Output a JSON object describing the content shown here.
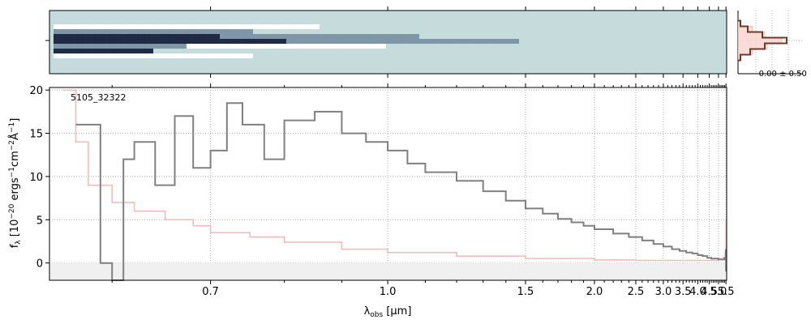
{
  "chart_data": [
    {
      "type": "heatmap",
      "panel": "2d-spectrum",
      "description_none": "",
      "xlabel": "",
      "ylabel": "",
      "colormap": [
        "#1f2a44",
        "#7f95a8",
        "#c6dcdc",
        "#ffffff"
      ],
      "background": "#c6dcdc"
    },
    {
      "type": "line",
      "panel": "spatial-profile",
      "annotation": "-0.00 ± 0.50",
      "series": [
        {
          "color": "#6b3a2c",
          "values": [
            -3,
            -2,
            -1,
            0,
            1,
            2,
            3
          ],
          "profile": [
            0.05,
            0.2,
            0.5,
            1.0,
            0.55,
            0.25,
            0.05
          ]
        },
        {
          "color": "#f4b3a6",
          "values": [
            -3,
            -2,
            -1,
            0,
            1,
            2,
            3
          ],
          "profile": [
            0.05,
            0.3,
            0.55,
            0.9,
            0.6,
            0.3,
            0.05
          ]
        }
      ]
    },
    {
      "type": "line",
      "panel": "1d-spectrum",
      "title": "",
      "annotation": "5105_32322",
      "xlabel": "λobs [μm]",
      "xlabel_main": "λ",
      "xlabel_sub": "obs",
      "xlabel_unit": " [μm]",
      "ylabel": "fλ [10−20 ergs−1cm−2Å−1]",
      "ylabel_parts": {
        "f": "f",
        "lam": "λ",
        "pre": " [10",
        "e1": "−20",
        "mid1": " ergs",
        "e2": "−1",
        "mid2": "cm",
        "e3": "−2",
        "mid3": "Å",
        "e4": "−1",
        "post": "]"
      },
      "xscale": "reciprocal",
      "xlim": [
        0.55,
        5.55
      ],
      "ylim": [
        -2,
        20.3
      ],
      "xticks": [
        0.7,
        1.0,
        1.5,
        2.0,
        2.5,
        3.0,
        3.5,
        4.0,
        4.5,
        5.0,
        5.5
      ],
      "xtick_labels": [
        "0.7",
        "1.0",
        "1.5",
        "2.0",
        "2.5",
        "3.0",
        "3.5",
        "4.0",
        "4.5",
        "5.0",
        "5.5"
      ],
      "yticks": [
        0,
        5,
        10,
        15,
        20
      ],
      "ytick_labels": [
        "0",
        "5",
        "10",
        "15",
        "20"
      ],
      "grid": true,
      "series": [
        {
          "name": "",
          "color": "#808080",
          "x": [
            0.57,
            0.59,
            0.6,
            0.61,
            0.62,
            0.64,
            0.66,
            0.68,
            0.7,
            0.72,
            0.74,
            0.77,
            0.8,
            0.85,
            0.9,
            0.95,
            1.0,
            1.05,
            1.1,
            1.2,
            1.3,
            1.4,
            1.5,
            1.6,
            1.7,
            1.8,
            1.9,
            2.0,
            2.2,
            2.4,
            2.6,
            2.8,
            3.0,
            3.2,
            3.4,
            3.6,
            3.8,
            4.0,
            4.2,
            4.4,
            4.6,
            4.8,
            5.0,
            5.2,
            5.4,
            5.48,
            5.5
          ],
          "y": [
            16,
            0,
            -2,
            12,
            14,
            9,
            17,
            11,
            13,
            18.5,
            16,
            12,
            16.5,
            17.5,
            15,
            14,
            13,
            11.5,
            10.5,
            9.5,
            8.3,
            7.2,
            6.3,
            5.7,
            5.1,
            4.7,
            4.3,
            3.9,
            3.4,
            3.0,
            2.6,
            2.2,
            1.9,
            1.6,
            1.4,
            1.2,
            1.1,
            0.9,
            0.8,
            0.6,
            0.5,
            0.5,
            0.4,
            0.4,
            0.6,
            1.5,
            -1
          ]
        },
        {
          "name": "",
          "color": "#f4b8b8",
          "x": [
            0.56,
            0.57,
            0.58,
            0.6,
            0.62,
            0.65,
            0.68,
            0.7,
            0.75,
            0.8,
            0.9,
            1.0,
            1.2,
            1.5,
            2.0,
            2.5,
            3.0,
            3.5,
            4.0,
            4.5,
            5.0,
            5.3,
            5.45,
            5.5
          ],
          "y": [
            20,
            14,
            9,
            7,
            6,
            5,
            4.3,
            3.5,
            3.0,
            2.4,
            1.6,
            1.2,
            0.8,
            0.5,
            0.35,
            0.3,
            0.3,
            0.3,
            0.3,
            0.3,
            0.5,
            0.6,
            1.2,
            5
          ]
        }
      ]
    }
  ]
}
